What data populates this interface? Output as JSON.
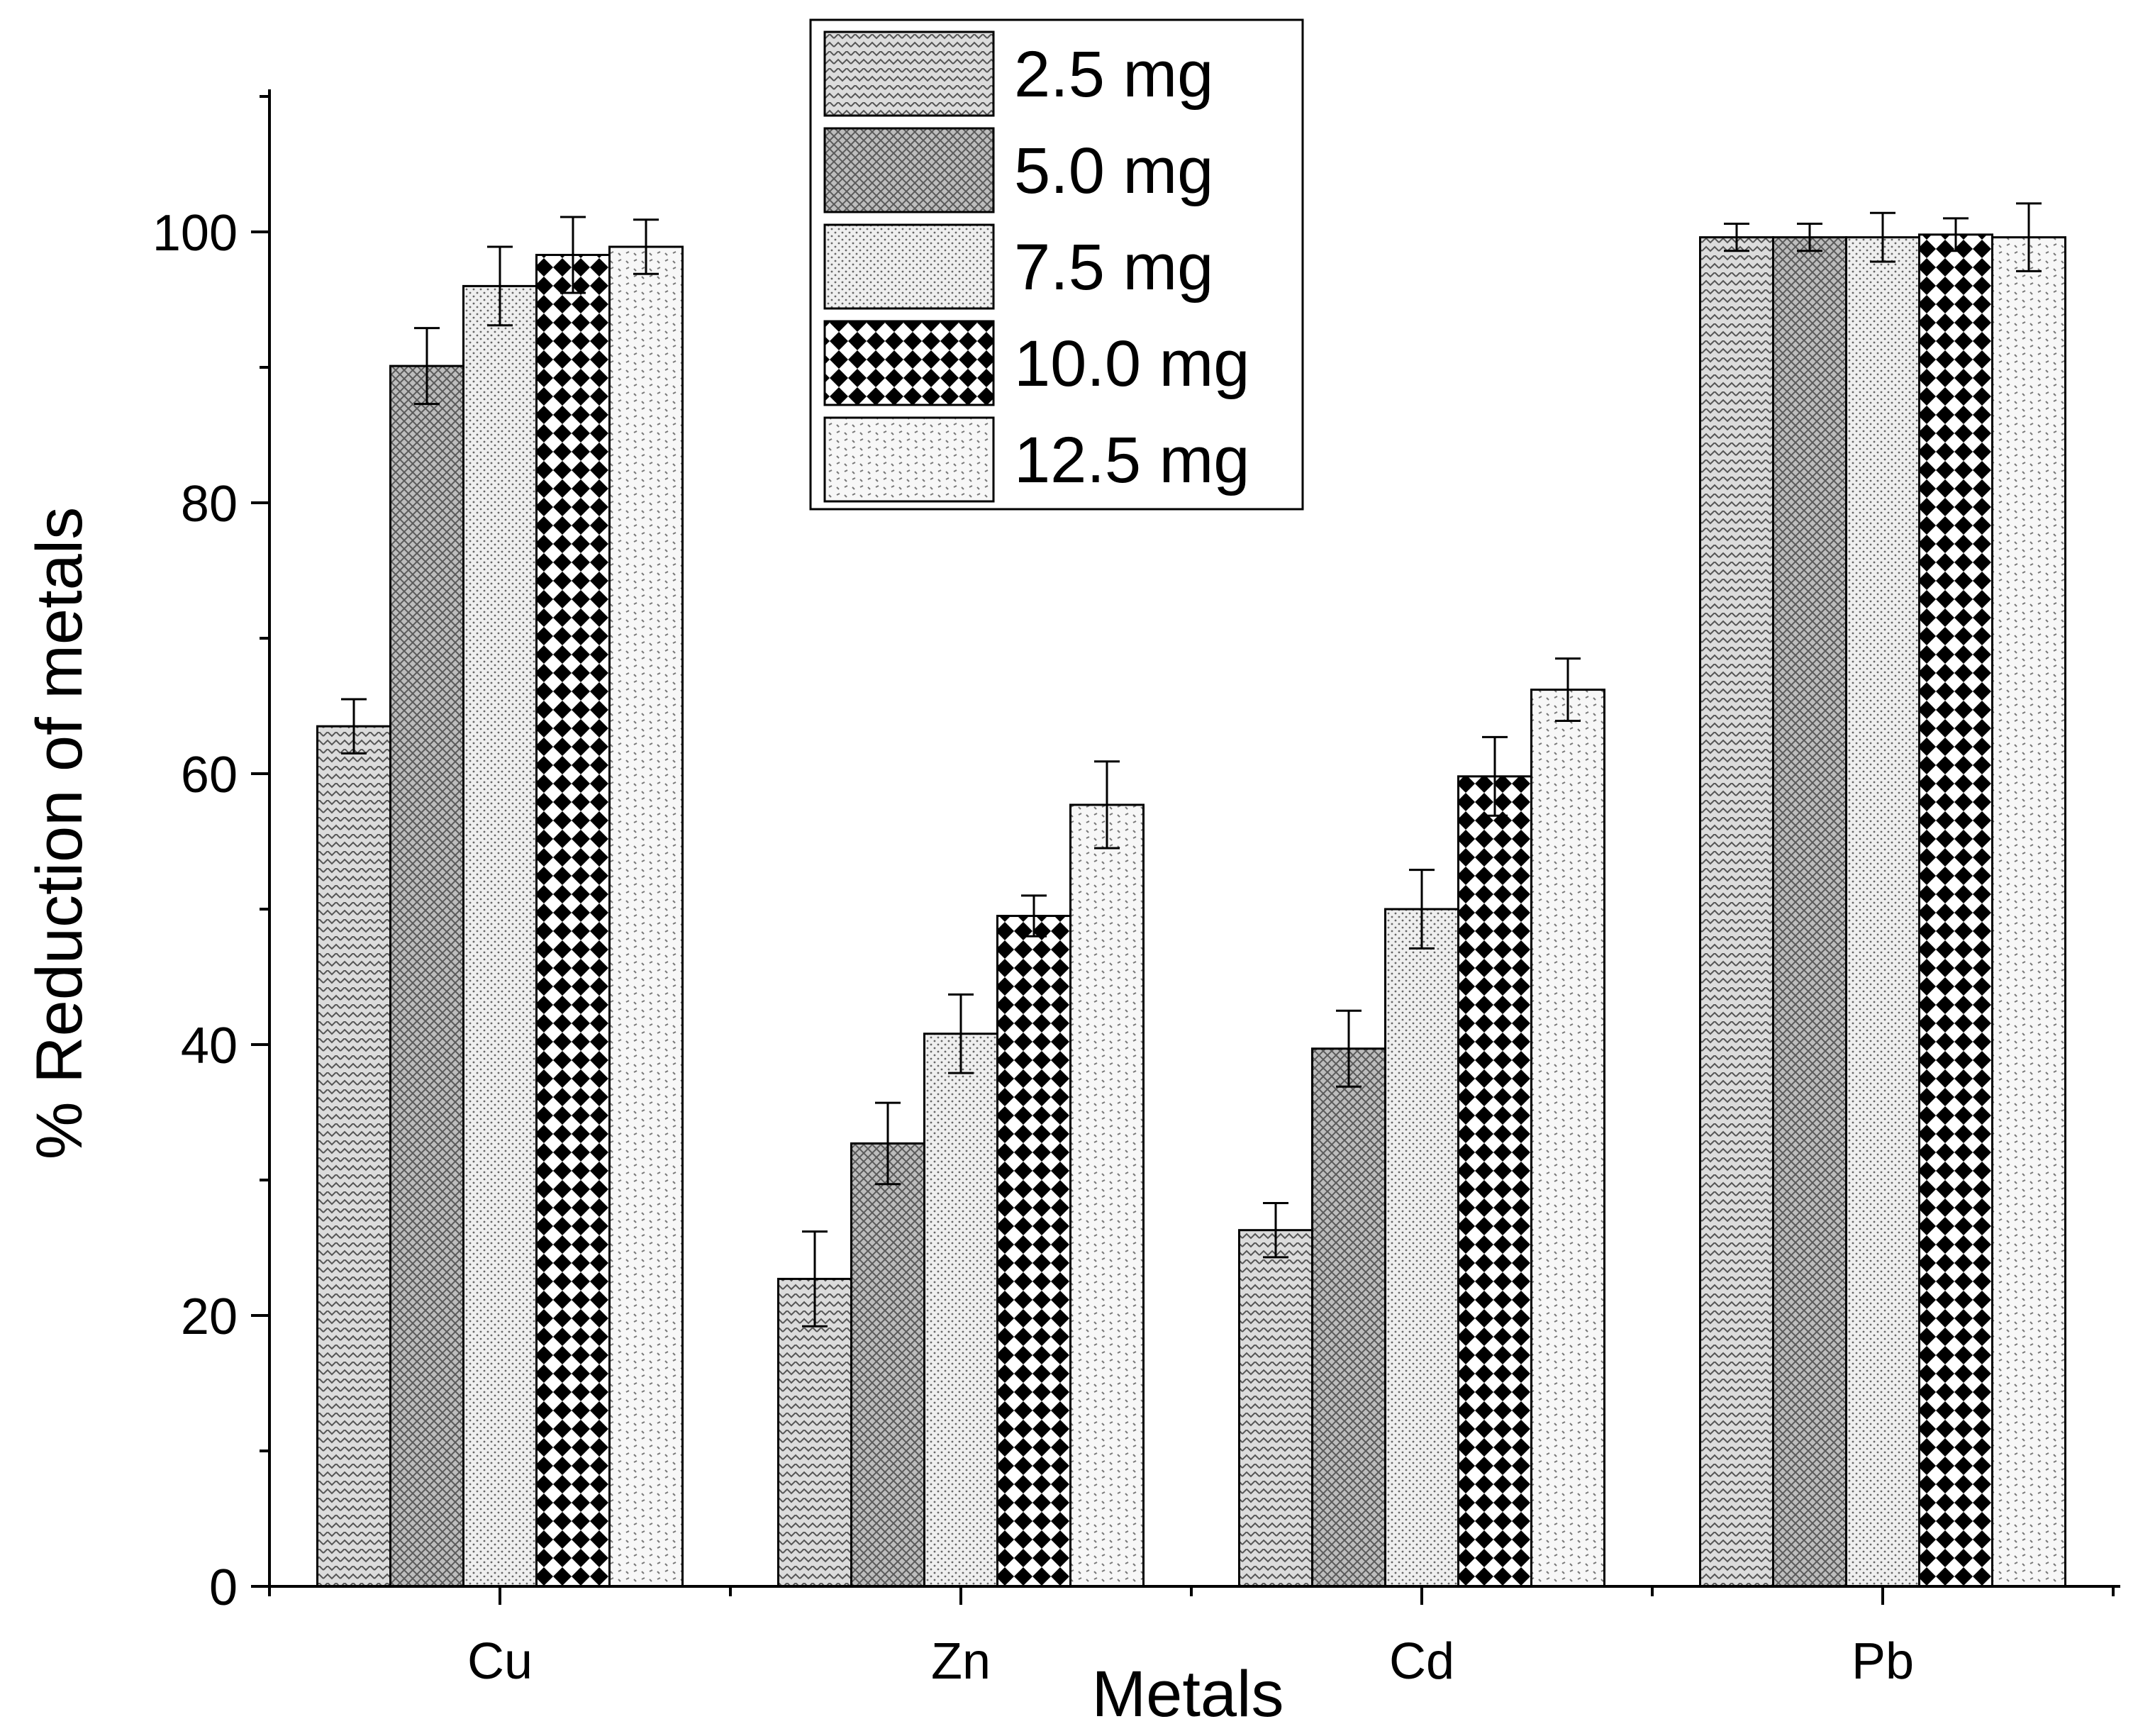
{
  "chart_data": {
    "type": "bar",
    "title": "",
    "xlabel": "Metals",
    "ylabel": "% Reduction of metals",
    "categories": [
      "Cu",
      "Zn",
      "Cd",
      "Pb"
    ],
    "ylim": [
      0,
      110
    ],
    "yticks": [
      0,
      20,
      40,
      60,
      80,
      100
    ],
    "ytick_labels": [
      "0",
      "20",
      "40",
      "60",
      "80",
      "100"
    ],
    "legend_position": "top-center",
    "grid": false,
    "series": [
      {
        "name": "2.5 mg",
        "pattern": "herringbone",
        "values": [
          63.5,
          22.7,
          26.3,
          99.6
        ],
        "errors": [
          2.0,
          3.5,
          2.0,
          1.0
        ]
      },
      {
        "name": "5.0 mg",
        "pattern": "dense-crosshatch",
        "values": [
          90.1,
          32.7,
          39.7,
          99.6
        ],
        "errors": [
          2.8,
          3.0,
          2.8,
          1.0
        ]
      },
      {
        "name": "7.5 mg",
        "pattern": "fine-dots",
        "values": [
          96.0,
          40.8,
          50.0,
          99.6
        ],
        "errors": [
          2.9,
          2.9,
          2.9,
          1.8
        ]
      },
      {
        "name": "10.0 mg",
        "pattern": "checker",
        "values": [
          98.3,
          49.5,
          59.8,
          99.8
        ],
        "errors": [
          2.8,
          1.5,
          2.9,
          1.2
        ]
      },
      {
        "name": "12.5 mg",
        "pattern": "sparse-dots",
        "values": [
          98.9,
          57.7,
          66.2,
          99.6
        ],
        "errors": [
          2.0,
          3.2,
          2.3,
          2.5
        ]
      }
    ],
    "colors": {
      "bar_fill": "#d9d9d9",
      "ink": "#000000",
      "background": "#ffffff"
    }
  }
}
